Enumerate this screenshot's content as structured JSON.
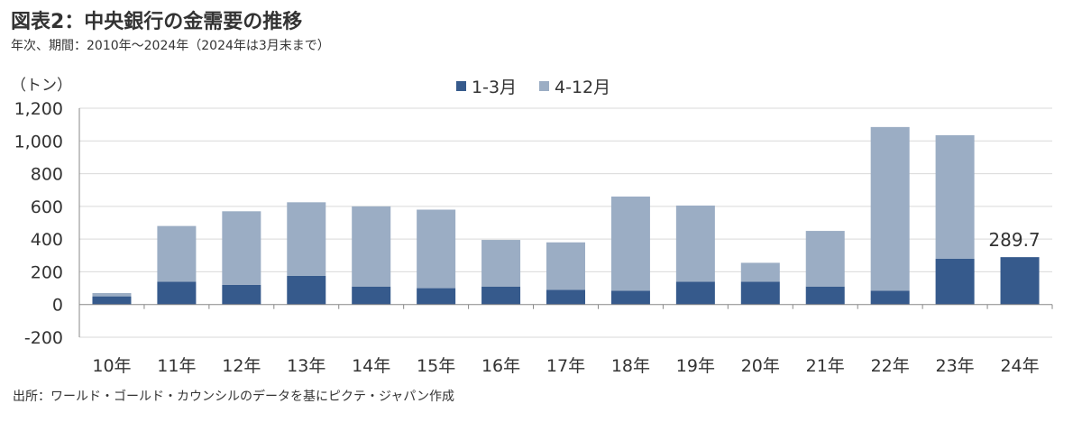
{
  "title": "図表2：中央銀行の金需要の推移",
  "subtitle": "年次、期間：2010年～2024年（2024年は3月末まで）",
  "source": "出所：ワールド・ゴールド・カウンシルのデータを基にピクテ・ジャパン作成",
  "colors": {
    "q1": "#365A8C",
    "q2_4": "#9BADC4",
    "grid": "#D9D9D9",
    "axis": "#888888"
  },
  "chart_data": {
    "type": "bar",
    "stacked": true,
    "unit_label": "（トン）",
    "categories": [
      "10年",
      "11年",
      "12年",
      "13年",
      "14年",
      "15年",
      "16年",
      "17年",
      "18年",
      "19年",
      "20年",
      "21年",
      "22年",
      "23年",
      "24年"
    ],
    "series": [
      {
        "name": "1-3月",
        "values": [
          50,
          140,
          120,
          175,
          110,
          100,
          110,
          90,
          85,
          140,
          140,
          110,
          85,
          280,
          289.7
        ]
      },
      {
        "name": "4-12月",
        "values": [
          20,
          340,
          450,
          450,
          490,
          480,
          285,
          290,
          575,
          465,
          115,
          340,
          1000,
          755,
          0
        ]
      }
    ],
    "ylim": [
      -200,
      1200
    ],
    "yticks": [
      -200,
      0,
      200,
      400,
      600,
      800,
      1000,
      1200
    ],
    "ytick_labels": [
      "-200",
      "0",
      "200",
      "400",
      "600",
      "800",
      "1,000",
      "1,200"
    ],
    "annotations": [
      {
        "category": "24年",
        "text": "289.7"
      }
    ],
    "legend_position": "top-center",
    "grid": true
  }
}
